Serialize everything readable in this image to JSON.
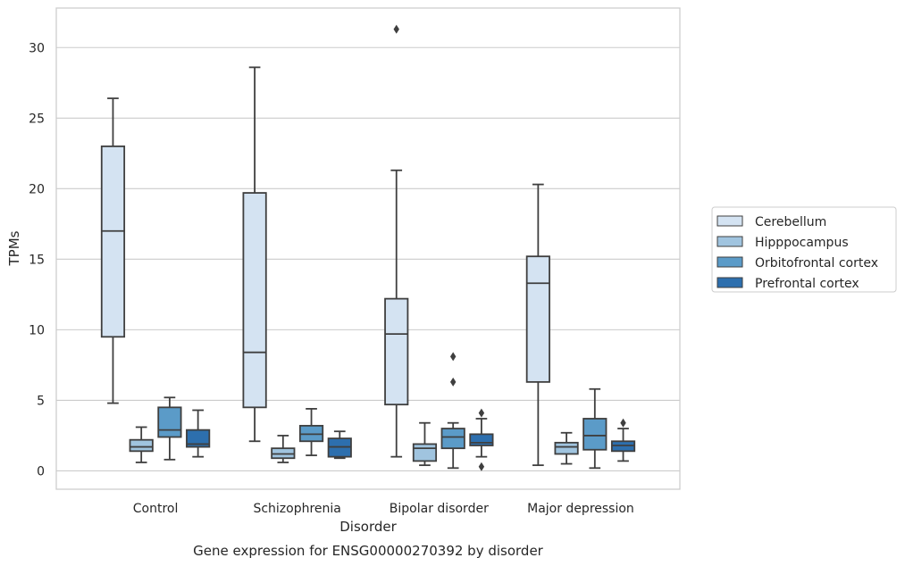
{
  "chart_data": {
    "type": "box",
    "title": "",
    "caption": "Gene expression for ENSG00000270392 by disorder",
    "xlabel": "Disorder",
    "ylabel": "TPMs",
    "ylim": [
      -1.3,
      32.8
    ],
    "yticks": [
      0,
      5,
      10,
      15,
      20,
      25,
      30
    ],
    "grid": "horizontal",
    "legend_position": "right",
    "categories": [
      "Control",
      "Schizophrenia",
      "Bipolar disorder",
      "Major depression"
    ],
    "series": [
      {
        "name": "Cerebellum",
        "color": "#d4e3f2",
        "boxes": [
          {
            "whisker_low": 4.8,
            "q1": 9.5,
            "median": 17.0,
            "q3": 23.0,
            "whisker_high": 26.4,
            "outliers": []
          },
          {
            "whisker_low": 2.1,
            "q1": 4.5,
            "median": 8.4,
            "q3": 19.7,
            "whisker_high": 28.6,
            "outliers": []
          },
          {
            "whisker_low": 1.0,
            "q1": 4.7,
            "median": 9.7,
            "q3": 12.2,
            "whisker_high": 21.3,
            "outliers": [
              31.3
            ]
          },
          {
            "whisker_low": 0.4,
            "q1": 6.3,
            "median": 13.3,
            "q3": 15.2,
            "whisker_high": 20.3,
            "outliers": []
          }
        ]
      },
      {
        "name": "Hipppocampus",
        "color": "#a0c4df",
        "boxes": [
          {
            "whisker_low": 0.6,
            "q1": 1.4,
            "median": 1.7,
            "q3": 2.2,
            "whisker_high": 3.1,
            "outliers": []
          },
          {
            "whisker_low": 0.6,
            "q1": 0.9,
            "median": 1.2,
            "q3": 1.6,
            "whisker_high": 2.5,
            "outliers": []
          },
          {
            "whisker_low": 0.4,
            "q1": 0.7,
            "median": 1.6,
            "q3": 1.9,
            "whisker_high": 3.4,
            "outliers": []
          },
          {
            "whisker_low": 0.5,
            "q1": 1.2,
            "median": 1.7,
            "q3": 2.0,
            "whisker_high": 2.7,
            "outliers": []
          }
        ]
      },
      {
        "name": "Orbitofrontal cortex",
        "color": "#5b9bc8",
        "boxes": [
          {
            "whisker_low": 0.8,
            "q1": 2.4,
            "median": 2.9,
            "q3": 4.5,
            "whisker_high": 5.2,
            "outliers": []
          },
          {
            "whisker_low": 1.1,
            "q1": 2.1,
            "median": 2.6,
            "q3": 3.2,
            "whisker_high": 4.4,
            "outliers": []
          },
          {
            "whisker_low": 0.2,
            "q1": 1.6,
            "median": 2.4,
            "q3": 3.0,
            "whisker_high": 3.4,
            "outliers": [
              8.1,
              6.3
            ]
          },
          {
            "whisker_low": 0.2,
            "q1": 1.5,
            "median": 2.5,
            "q3": 3.7,
            "whisker_high": 5.8,
            "outliers": []
          }
        ]
      },
      {
        "name": "Prefrontal cortex",
        "color": "#2d6fae",
        "boxes": [
          {
            "whisker_low": 1.0,
            "q1": 1.7,
            "median": 1.9,
            "q3": 2.9,
            "whisker_high": 4.3,
            "outliers": []
          },
          {
            "whisker_low": 0.9,
            "q1": 1.0,
            "median": 1.7,
            "q3": 2.3,
            "whisker_high": 2.8,
            "outliers": []
          },
          {
            "whisker_low": 1.0,
            "q1": 1.8,
            "median": 2.0,
            "q3": 2.6,
            "whisker_high": 3.7,
            "outliers": [
              4.1,
              0.3
            ]
          },
          {
            "whisker_low": 0.7,
            "q1": 1.4,
            "median": 1.8,
            "q3": 2.1,
            "whisker_high": 3.0,
            "outliers": [
              3.4
            ]
          }
        ]
      }
    ]
  }
}
